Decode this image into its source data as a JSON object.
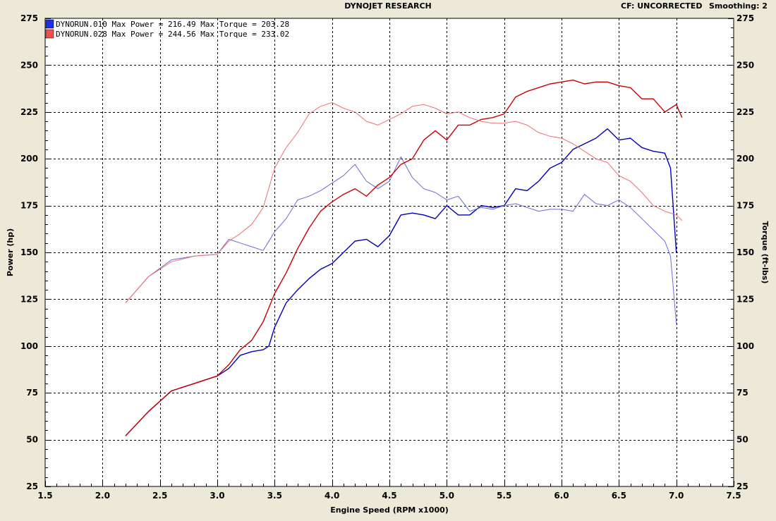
{
  "header": {
    "title": "DYNOJET RESEARCH",
    "correction": "CF: UNCORRECTED",
    "smoothing": "Smoothing: 2"
  },
  "colors": {
    "run010_power": "#0000bb",
    "run010_torque": "#6a6ad8",
    "run028_power": "#cc0000",
    "run028_torque": "#ee7070",
    "plot_bg": "#ffffff",
    "frame_bg": "#ece9d8",
    "legend_blue": "#2030e0",
    "legend_red": "#f05050"
  },
  "chart_data": {
    "type": "line",
    "title": "DYNOJET RESEARCH",
    "xlabel": "Engine Speed (RPM x1000)",
    "ylabel": "Power (hp)",
    "y2label": "Torque (ft-lbs)",
    "xlim": [
      1.5,
      7.5
    ],
    "ylim": [
      25,
      275
    ],
    "y2lim": [
      25,
      275
    ],
    "x_ticks": [
      "1.5",
      "2.0",
      "2.5",
      "3.0",
      "3.5",
      "4.0",
      "4.5",
      "5.0",
      "5.5",
      "6.0",
      "6.5",
      "7.0",
      "7.5"
    ],
    "y_ticks": [
      "25",
      "50",
      "75",
      "100",
      "125",
      "150",
      "175",
      "200",
      "225",
      "250",
      "275"
    ],
    "grid": true,
    "legend_position": "top-left",
    "legend": [
      {
        "run": "DYNORUN.010",
        "text": "DYNORUN.010 Max Power = 216.49 Max Torque = 203.28"
      },
      {
        "run": "DYNORUN.028",
        "text": "DYNORUN.028 Max Power = 244.56 Max Torque = 233.02"
      }
    ],
    "series": [
      {
        "name": "DYNORUN.010",
        "quantity": "power",
        "axis": "left",
        "color": "#0000bb",
        "x": [
          2.2,
          2.4,
          2.6,
          2.8,
          3.0,
          3.1,
          3.2,
          3.3,
          3.4,
          3.45,
          3.5,
          3.6,
          3.7,
          3.8,
          3.9,
          4.0,
          4.1,
          4.2,
          4.3,
          4.4,
          4.5,
          4.6,
          4.7,
          4.8,
          4.9,
          5.0,
          5.1,
          5.2,
          5.3,
          5.4,
          5.5,
          5.6,
          5.7,
          5.8,
          5.9,
          6.0,
          6.1,
          6.2,
          6.3,
          6.4,
          6.5,
          6.6,
          6.7,
          6.8,
          6.9,
          6.95,
          7.0
        ],
        "y": [
          52,
          65,
          76,
          80,
          84,
          88,
          95,
          97,
          98,
          100,
          110,
          123,
          130,
          136,
          141,
          144,
          150,
          156,
          157,
          153,
          159,
          170,
          171,
          170,
          168,
          175,
          170,
          170,
          175,
          174,
          175,
          184,
          183,
          188,
          195,
          198,
          205,
          208,
          211,
          216,
          210,
          211,
          206,
          204,
          203,
          195,
          150
        ]
      },
      {
        "name": "DYNORUN.010",
        "quantity": "torque",
        "axis": "right",
        "color": "#6a6ad8",
        "x": [
          2.2,
          2.4,
          2.6,
          2.8,
          3.0,
          3.1,
          3.2,
          3.3,
          3.4,
          3.5,
          3.6,
          3.7,
          3.8,
          3.9,
          4.0,
          4.1,
          4.2,
          4.3,
          4.4,
          4.5,
          4.6,
          4.7,
          4.8,
          4.9,
          5.0,
          5.1,
          5.2,
          5.3,
          5.4,
          5.5,
          5.6,
          5.7,
          5.8,
          5.9,
          6.0,
          6.1,
          6.2,
          6.3,
          6.4,
          6.5,
          6.6,
          6.7,
          6.8,
          6.9,
          6.95,
          7.0
        ],
        "y": [
          123,
          137,
          146,
          148,
          149,
          157,
          155,
          153,
          151,
          161,
          168,
          178,
          180,
          183,
          187,
          191,
          197,
          188,
          184,
          188,
          201,
          190,
          184,
          182,
          178,
          180,
          172,
          174,
          173,
          175,
          176,
          174,
          172,
          173,
          173,
          172,
          181,
          176,
          175,
          178,
          174,
          168,
          162,
          156,
          148,
          112
        ]
      },
      {
        "name": "DYNORUN.028",
        "quantity": "power",
        "axis": "left",
        "color": "#cc0000",
        "x": [
          2.2,
          2.4,
          2.6,
          2.8,
          3.0,
          3.1,
          3.2,
          3.3,
          3.4,
          3.5,
          3.6,
          3.7,
          3.8,
          3.9,
          4.0,
          4.1,
          4.2,
          4.3,
          4.4,
          4.5,
          4.6,
          4.7,
          4.8,
          4.9,
          5.0,
          5.1,
          5.2,
          5.3,
          5.4,
          5.5,
          5.6,
          5.7,
          5.8,
          5.9,
          6.0,
          6.1,
          6.2,
          6.3,
          6.4,
          6.5,
          6.6,
          6.7,
          6.8,
          6.9,
          7.0,
          7.05
        ],
        "y": [
          52,
          65,
          76,
          80,
          84,
          90,
          98,
          103,
          113,
          128,
          139,
          152,
          163,
          172,
          177,
          181,
          184,
          180,
          186,
          190,
          197,
          200,
          210,
          215,
          210,
          218,
          218,
          221,
          222,
          224,
          233,
          236,
          238,
          240,
          241,
          242,
          240,
          241,
          241,
          239,
          238,
          232,
          232,
          225,
          229,
          222
        ]
      },
      {
        "name": "DYNORUN.028",
        "quantity": "torque",
        "axis": "right",
        "color": "#ee7070",
        "x": [
          2.2,
          2.4,
          2.6,
          2.8,
          3.0,
          3.1,
          3.2,
          3.3,
          3.4,
          3.5,
          3.6,
          3.7,
          3.8,
          3.9,
          4.0,
          4.1,
          4.2,
          4.3,
          4.4,
          4.5,
          4.6,
          4.7,
          4.8,
          4.9,
          5.0,
          5.1,
          5.2,
          5.3,
          5.4,
          5.5,
          5.6,
          5.7,
          5.8,
          5.9,
          6.0,
          6.1,
          6.2,
          6.3,
          6.4,
          6.5,
          6.6,
          6.7,
          6.8,
          6.9,
          7.0,
          7.05
        ],
        "y": [
          123,
          137,
          145,
          148,
          149,
          156,
          160,
          165,
          174,
          195,
          206,
          214,
          224,
          228,
          230,
          227,
          225,
          220,
          218,
          221,
          224,
          228,
          229,
          227,
          224,
          225,
          222,
          220,
          219,
          219,
          220,
          218,
          214,
          212,
          211,
          208,
          204,
          200,
          198,
          191,
          188,
          182,
          175,
          172,
          170,
          167
        ]
      }
    ]
  }
}
